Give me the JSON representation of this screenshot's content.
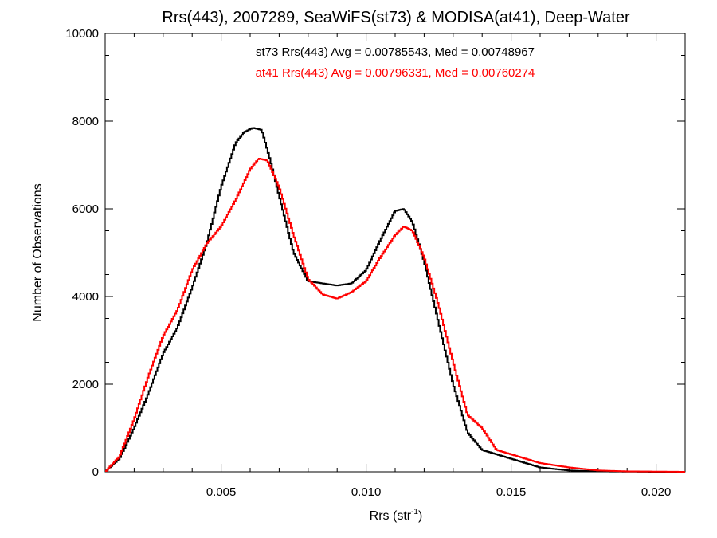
{
  "chart_data": {
    "type": "line",
    "title": "Rrs(443), 2007289, SeaWiFS(st73) & MODISA(at41), Deep-Water",
    "xlabel_main": "Rrs (str",
    "xlabel_sup": "-1",
    "xlabel_close": ")",
    "ylabel": "Number of Observations",
    "xlim": [
      0.001,
      0.021
    ],
    "ylim": [
      0,
      10000
    ],
    "x_ticks": [
      0.005,
      0.01,
      0.015,
      0.02
    ],
    "x_tick_labels": [
      "0.005",
      "0.010",
      "0.015",
      "0.020"
    ],
    "y_ticks": [
      0,
      2000,
      4000,
      6000,
      8000,
      10000
    ],
    "y_tick_labels": [
      "0",
      "2000",
      "4000",
      "6000",
      "8000",
      "10000"
    ],
    "grid": false,
    "annotations": [
      {
        "text": "st73 Rrs(443) Avg = 0.00785543, Med = 0.00748967",
        "color": "#000000"
      },
      {
        "text": "at41 Rrs(443) Avg = 0.00796331, Med = 0.00760274",
        "color": "#ff0000"
      }
    ],
    "series": [
      {
        "color": "#000000",
        "x": [
          0.001,
          0.0015,
          0.002,
          0.0025,
          0.003,
          0.0035,
          0.004,
          0.0045,
          0.005,
          0.0055,
          0.0058,
          0.0061,
          0.0064,
          0.0067,
          0.007,
          0.0075,
          0.008,
          0.0085,
          0.009,
          0.0095,
          0.01,
          0.0105,
          0.011,
          0.0113,
          0.0116,
          0.012,
          0.0125,
          0.013,
          0.0135,
          0.014,
          0.0145,
          0.015,
          0.0155,
          0.016,
          0.017,
          0.018,
          0.019,
          0.02,
          0.021
        ],
        "y": [
          0,
          300,
          1000,
          1800,
          2700,
          3300,
          4200,
          5200,
          6500,
          7500,
          7750,
          7850,
          7800,
          7100,
          6300,
          5000,
          4350,
          4300,
          4250,
          4300,
          4600,
          5300,
          5950,
          6000,
          5700,
          4800,
          3400,
          2000,
          900,
          500,
          400,
          300,
          200,
          100,
          30,
          10,
          5,
          0,
          0
        ]
      },
      {
        "color": "#ff0000",
        "x": [
          0.001,
          0.0015,
          0.002,
          0.0025,
          0.003,
          0.0035,
          0.004,
          0.0045,
          0.005,
          0.0055,
          0.006,
          0.0063,
          0.0066,
          0.007,
          0.0075,
          0.008,
          0.0085,
          0.009,
          0.0095,
          0.01,
          0.0105,
          0.011,
          0.0113,
          0.0116,
          0.012,
          0.0125,
          0.013,
          0.0135,
          0.014,
          0.0145,
          0.015,
          0.0155,
          0.016,
          0.017,
          0.018,
          0.019,
          0.02,
          0.021
        ],
        "y": [
          0,
          350,
          1200,
          2200,
          3100,
          3700,
          4600,
          5200,
          5600,
          6200,
          6900,
          7150,
          7100,
          6500,
          5400,
          4400,
          4050,
          3950,
          4100,
          4350,
          4900,
          5400,
          5600,
          5500,
          4900,
          3800,
          2500,
          1300,
          1000,
          500,
          400,
          300,
          200,
          100,
          30,
          10,
          5,
          0
        ]
      }
    ]
  }
}
